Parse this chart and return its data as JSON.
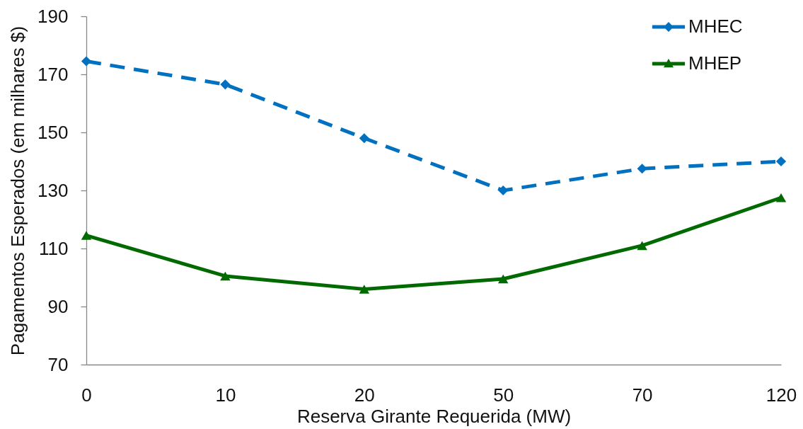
{
  "chart_data": {
    "type": "line",
    "xlabel": "Reserva Girante Requerida  (MW)",
    "ylabel": "Pagamentos Esperados (em milhares $)",
    "categories": [
      "0",
      "10",
      "20",
      "50",
      "70",
      "120"
    ],
    "ylim": [
      70,
      190
    ],
    "yticks": [
      70,
      90,
      110,
      130,
      150,
      170,
      190
    ],
    "grid": false,
    "legend": "top right",
    "series": [
      {
        "name": "MHEC",
        "color": "#0070c0",
        "marker": "diamond",
        "line_style": "dashed",
        "values": [
          174.5,
          166.5,
          148,
          130,
          137.5,
          140
        ]
      },
      {
        "name": "MHEP",
        "color": "#006a00",
        "marker": "triangle",
        "line_style": "solid",
        "values": [
          114.5,
          100.5,
          96,
          99.5,
          111,
          127.5
        ]
      }
    ]
  }
}
